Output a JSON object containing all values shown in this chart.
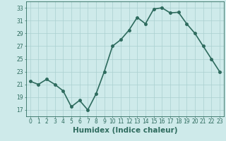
{
  "x": [
    0,
    1,
    2,
    3,
    4,
    5,
    6,
    7,
    8,
    9,
    10,
    11,
    12,
    13,
    14,
    15,
    16,
    17,
    18,
    19,
    20,
    21,
    22,
    23
  ],
  "y": [
    21.5,
    21.0,
    21.8,
    21.0,
    20.0,
    17.5,
    18.5,
    17.0,
    19.5,
    23.0,
    27.0,
    28.0,
    29.5,
    31.5,
    30.5,
    32.8,
    33.0,
    32.2,
    32.3,
    30.5,
    29.0,
    27.0,
    25.0,
    23.0
  ],
  "line_color": "#2e6b5e",
  "marker": "o",
  "marker_size": 2.5,
  "bg_color": "#ceeaea",
  "grid_color": "#aacfcf",
  "xlabel": "Humidex (Indice chaleur)",
  "xlim": [
    -0.5,
    23.5
  ],
  "ylim": [
    16,
    34
  ],
  "yticks": [
    17,
    19,
    21,
    23,
    25,
    27,
    29,
    31,
    33
  ],
  "xticks": [
    0,
    1,
    2,
    3,
    4,
    5,
    6,
    7,
    8,
    9,
    10,
    11,
    12,
    13,
    14,
    15,
    16,
    17,
    18,
    19,
    20,
    21,
    22,
    23
  ],
  "tick_fontsize": 5.5,
  "xlabel_fontsize": 7.5,
  "line_width": 1.2
}
